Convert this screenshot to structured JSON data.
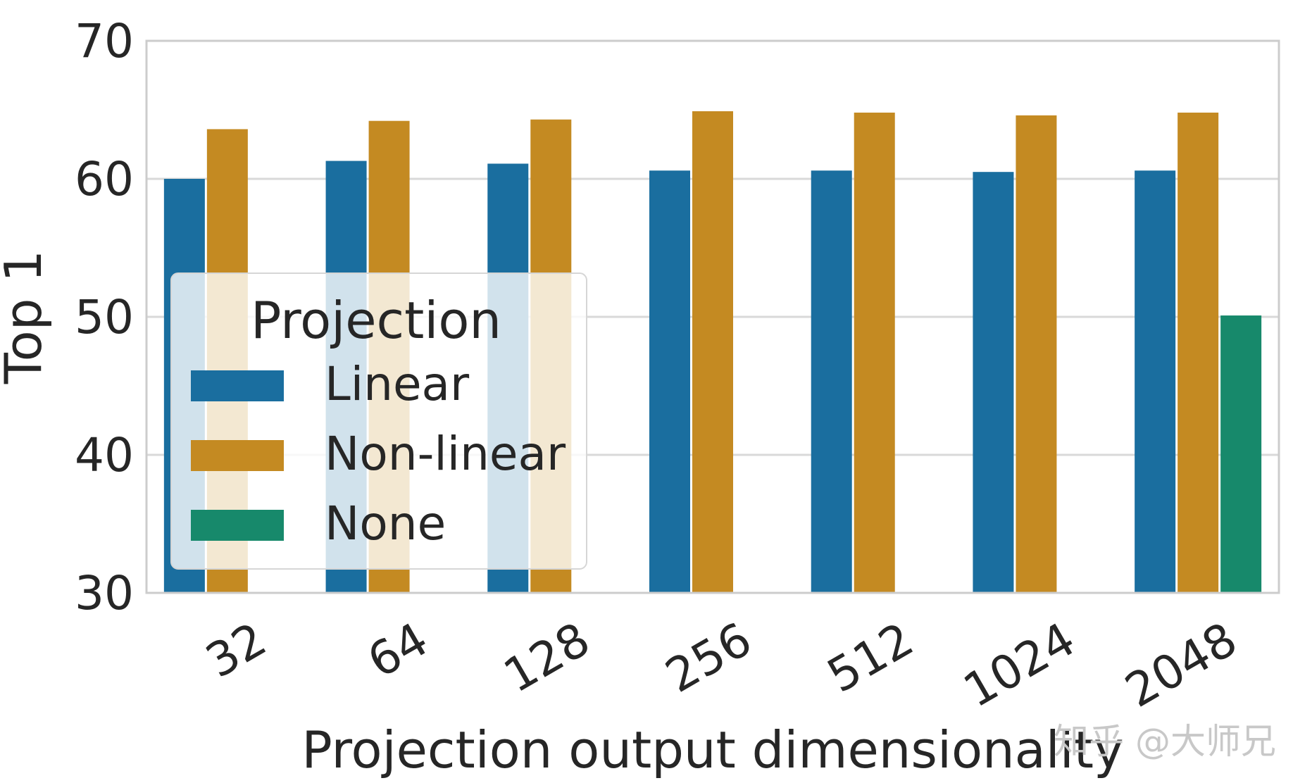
{
  "chart_data": {
    "type": "bar",
    "xlabel": "Projection output dimensionality",
    "ylabel": "Top 1",
    "ylim": [
      30,
      70
    ],
    "yticks": [
      30,
      40,
      50,
      60,
      70
    ],
    "categories": [
      "32",
      "64",
      "128",
      "256",
      "512",
      "1024",
      "2048"
    ],
    "grid": true,
    "legend": {
      "title": "Projection",
      "placement": "center-left"
    },
    "series": [
      {
        "name": "Linear",
        "color": "#1a6e9f",
        "values": [
          60.0,
          61.3,
          61.1,
          60.6,
          60.6,
          60.5,
          60.6
        ]
      },
      {
        "name": "Non-linear",
        "color": "#c48a22",
        "values": [
          63.6,
          64.2,
          64.3,
          64.9,
          64.8,
          64.6,
          64.8
        ]
      },
      {
        "name": "None",
        "color": "#17896b",
        "values": [
          null,
          null,
          null,
          null,
          null,
          null,
          50.1
        ]
      }
    ]
  },
  "watermark": "知乎 @大师兄"
}
